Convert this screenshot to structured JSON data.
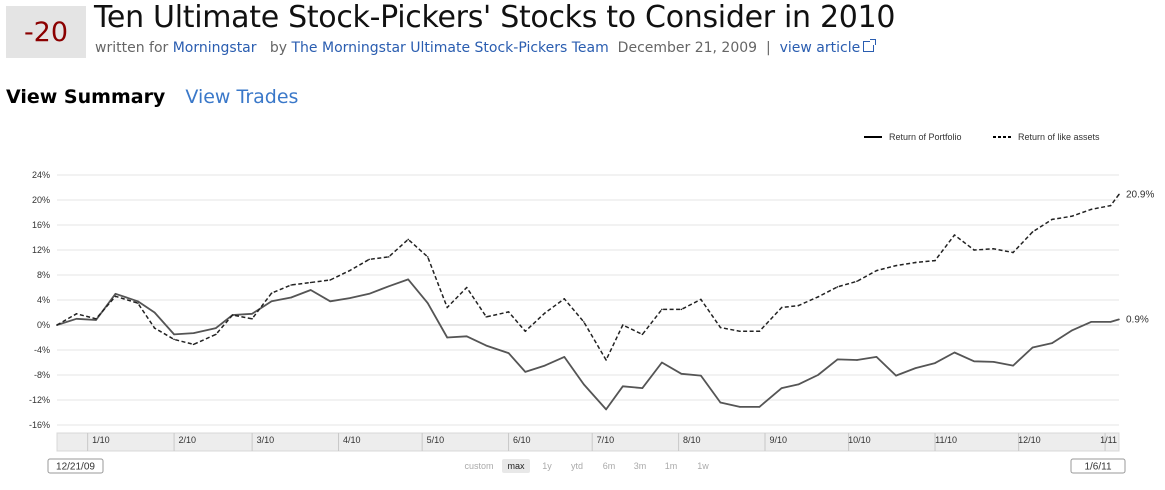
{
  "header": {
    "score": "-20",
    "title": "Ten Ultimate Stock-Pickers' Stocks to Consider in 2010",
    "written_for_prefix": "written for",
    "publication": "Morningstar",
    "by_prefix": "by",
    "author": "The Morningstar Ultimate Stock-Pickers Team",
    "date": "December 21, 2009",
    "separator": "|",
    "view_article": "view article"
  },
  "tabs": {
    "summary": "View Summary",
    "trades": "View Trades"
  },
  "range": {
    "start_date": "12/21/09",
    "end_date": "1/6/11",
    "buttons": [
      "custom",
      "max",
      "1y",
      "ytd",
      "6m",
      "3m",
      "1m",
      "1w"
    ],
    "selected": "max"
  },
  "colors": {
    "portfolio": "#555555",
    "like_assets": "#222222",
    "score_text": "#8b0000",
    "link": "#2a5db0"
  },
  "chart_data": {
    "type": "line",
    "title": "",
    "xlabel": "",
    "ylabel": "",
    "ylim": [
      -16,
      24
    ],
    "yticks": [
      24,
      20,
      16,
      12,
      8,
      4,
      0,
      -4,
      -8,
      -12,
      -16
    ],
    "ytick_labels": [
      "24%",
      "20%",
      "16%",
      "12%",
      "8%",
      "4%",
      "0%",
      "-4%",
      "-8%",
      "-12%",
      "-16%"
    ],
    "x": [
      "12/21/09",
      "12/28/09",
      "1/4/10",
      "1/11/10",
      "1/19/10",
      "1/25/10",
      "2/1/10",
      "2/8/10",
      "2/16/10",
      "2/22/10",
      "3/1/10",
      "3/8/10",
      "3/15/10",
      "3/22/10",
      "3/29/10",
      "4/5/10",
      "4/12/10",
      "4/19/10",
      "4/26/10",
      "5/3/10",
      "5/10/10",
      "5/17/10",
      "5/24/10",
      "6/1/10",
      "6/7/10",
      "6/14/10",
      "6/21/10",
      "6/28/10",
      "7/6/10",
      "7/12/10",
      "7/19/10",
      "7/26/10",
      "8/2/10",
      "8/9/10",
      "8/16/10",
      "8/23/10",
      "8/30/10",
      "9/7/10",
      "9/13/10",
      "9/20/10",
      "9/27/10",
      "10/4/10",
      "10/11/10",
      "10/18/10",
      "10/25/10",
      "11/1/10",
      "11/8/10",
      "11/15/10",
      "11/22/10",
      "11/29/10",
      "12/6/10",
      "12/13/10",
      "12/20/10",
      "12/27/10",
      "1/3/11",
      "1/6/11"
    ],
    "xtick_labels": [
      "1/10",
      "2/10",
      "3/10",
      "4/10",
      "5/10",
      "6/10",
      "7/10",
      "8/10",
      "9/10",
      "10/10",
      "11/10",
      "12/10",
      "1/11"
    ],
    "series": [
      {
        "name": "Return of Portfolio",
        "style": "solid",
        "end_label": "0.9%",
        "values": [
          0.0,
          1.0,
          0.8,
          5.0,
          3.8,
          2.0,
          -1.5,
          -1.3,
          -0.5,
          1.6,
          1.8,
          3.8,
          4.4,
          5.6,
          3.8,
          4.3,
          5.0,
          6.2,
          7.3,
          3.5,
          -2.0,
          -1.8,
          -3.3,
          -4.5,
          -7.5,
          -6.5,
          -5.1,
          -9.5,
          -13.5,
          -9.8,
          -10.1,
          -6.0,
          -7.8,
          -8.1,
          -12.4,
          -13.1,
          -13.1,
          -10.1,
          -9.5,
          -8.0,
          -5.5,
          -5.6,
          -5.1,
          -8.1,
          -6.9,
          -6.1,
          -4.4,
          -5.8,
          -5.9,
          -6.5,
          -3.6,
          -2.9,
          -0.9,
          0.5,
          0.5,
          0.9
        ]
      },
      {
        "name": "Return of like assets",
        "style": "dashed",
        "end_label": "20.9%",
        "values": [
          0.0,
          1.8,
          1.0,
          4.6,
          3.5,
          -0.5,
          -2.3,
          -3.1,
          -1.5,
          1.6,
          1.0,
          5.1,
          6.4,
          6.8,
          7.2,
          8.7,
          10.5,
          10.9,
          13.7,
          10.9,
          2.8,
          6.0,
          1.3,
          2.1,
          -1.0,
          1.9,
          4.2,
          0.5,
          -5.6,
          0.0,
          -1.5,
          2.5,
          2.5,
          4.1,
          -0.4,
          -1.0,
          -1.0,
          2.8,
          3.1,
          4.5,
          6.1,
          7.0,
          8.7,
          9.5,
          10.0,
          10.3,
          14.4,
          12.0,
          12.2,
          11.6,
          14.9,
          16.9,
          17.4,
          18.5,
          19.1,
          20.9
        ]
      }
    ],
    "legend_position": "top-right",
    "grid": true
  }
}
